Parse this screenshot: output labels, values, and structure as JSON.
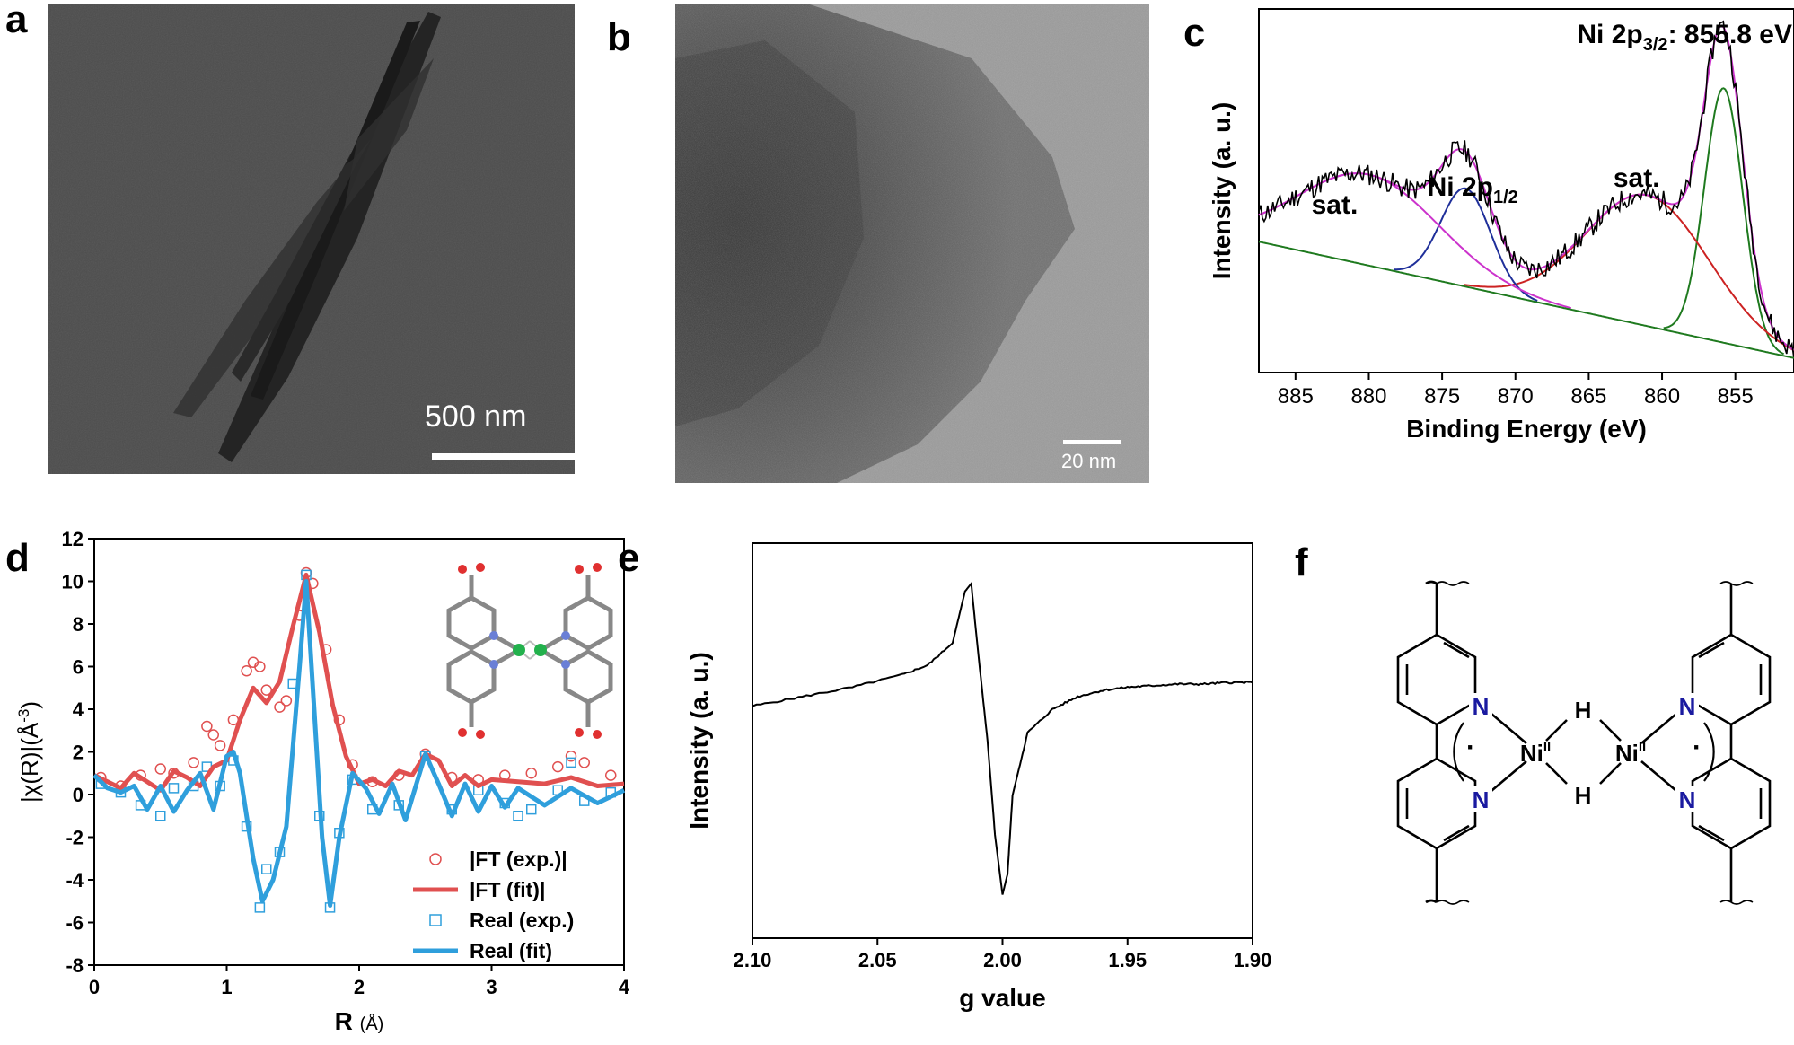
{
  "panels": {
    "a": {
      "letter": "a",
      "scale_label": "500 nm"
    },
    "b": {
      "letter": "b",
      "scale_label": "20 nm"
    },
    "c": {
      "letter": "c"
    },
    "d": {
      "letter": "d"
    },
    "e": {
      "letter": "e"
    },
    "f": {
      "letter": "f"
    }
  },
  "chart_data": [
    {
      "id": "c",
      "type": "line",
      "xlabel": "Binding Energy (eV)",
      "ylabel": "Intensity (a. u.)",
      "xlim": [
        887.5,
        851
      ],
      "x_ticks": [
        885,
        880,
        875,
        870,
        865,
        860,
        855
      ],
      "x_reversed": true,
      "annotations": [
        {
          "text": "Ni 2p",
          "sub": "3/2",
          "suffix": ": 855.8 eV"
        },
        {
          "text": "Ni 2p",
          "sub": "1/2",
          "suffix": ""
        },
        {
          "text": "sat.",
          "sub": "",
          "suffix": ""
        },
        {
          "text": "sat.",
          "sub": "",
          "suffix": ""
        }
      ],
      "background_line": {
        "x": [
          887.5,
          851
        ],
        "y": [
          0.36,
          0.04
        ]
      },
      "peaks": [
        {
          "center": 855.8,
          "height": 0.7,
          "width": 1.3,
          "color": "#1f7a1f"
        },
        {
          "center": 861.0,
          "height": 0.36,
          "width": 4.2,
          "color": "#cc2222"
        },
        {
          "center": 873.4,
          "height": 0.27,
          "width": 1.7,
          "color": "#1f2f9a"
        },
        {
          "center": 880.0,
          "height": 0.25,
          "width": 4.8,
          "color": "#cc33cc"
        }
      ],
      "colors": {
        "data": "#000000",
        "envelope": "#cc33cc",
        "background": "#1f7a1f"
      }
    },
    {
      "id": "d",
      "type": "line",
      "xlabel": "R",
      "xlabel_unit": "(Å)",
      "ylabel": "|χ(R)|(Å",
      "ylabel_sup": "-3",
      "ylabel_end": ")",
      "xlim": [
        0,
        4
      ],
      "ylim": [
        -8,
        12
      ],
      "x_ticks": [
        0,
        1,
        2,
        3,
        4
      ],
      "y_ticks": [
        -8,
        -6,
        -4,
        -2,
        0,
        2,
        4,
        6,
        8,
        10,
        12
      ],
      "legend": [
        "|FT (exp.)|",
        "|FT (fit)|",
        "Real (exp.)",
        "Real (fit)"
      ],
      "legend_position": "bottom-right",
      "series": [
        {
          "name": "|FT (fit)|",
          "color": "#e05050",
          "x": [
            0,
            0.1,
            0.2,
            0.3,
            0.4,
            0.5,
            0.6,
            0.7,
            0.8,
            0.9,
            1.0,
            1.1,
            1.2,
            1.3,
            1.4,
            1.5,
            1.6,
            1.7,
            1.8,
            1.9,
            2.0,
            2.1,
            2.2,
            2.3,
            2.4,
            2.5,
            2.6,
            2.7,
            2.8,
            2.9,
            3.0,
            3.2,
            3.4,
            3.6,
            3.8,
            4.0
          ],
          "y": [
            0.9,
            0.6,
            0.3,
            1.0,
            0.6,
            0.2,
            1.1,
            0.8,
            0.4,
            1.3,
            1.6,
            3.5,
            5.0,
            4.3,
            5.3,
            7.9,
            10.3,
            7.6,
            4.2,
            1.8,
            0.5,
            0.7,
            0.4,
            1.1,
            0.9,
            1.9,
            1.6,
            0.4,
            0.9,
            0.4,
            0.7,
            0.6,
            0.5,
            0.8,
            0.4,
            0.5
          ]
        },
        {
          "name": "Real (fit)",
          "color": "#2f9fdc",
          "x": [
            0,
            0.1,
            0.2,
            0.3,
            0.4,
            0.5,
            0.6,
            0.7,
            0.8,
            0.9,
            1.0,
            1.05,
            1.1,
            1.2,
            1.27,
            1.35,
            1.45,
            1.55,
            1.6,
            1.65,
            1.72,
            1.78,
            1.85,
            1.95,
            2.05,
            2.15,
            2.25,
            2.35,
            2.5,
            2.6,
            2.7,
            2.8,
            2.9,
            3.0,
            3.1,
            3.2,
            3.4,
            3.6,
            3.8,
            4.0
          ],
          "y": [
            0.9,
            0.3,
            0.1,
            0.4,
            -0.7,
            0.4,
            -0.8,
            0.2,
            1.0,
            -0.7,
            1.8,
            2.0,
            1.0,
            -3.0,
            -5.0,
            -4.0,
            -1.5,
            6.0,
            10.0,
            5.0,
            -2.0,
            -5.2,
            -2.0,
            1.0,
            0.3,
            -0.9,
            0.5,
            -1.2,
            1.9,
            0.5,
            -1.0,
            0.5,
            -0.8,
            0.4,
            -0.6,
            0.3,
            -0.5,
            0.3,
            -0.4,
            0.2
          ]
        },
        {
          "name": "|FT (exp.)|",
          "color": "#e05050",
          "x": [
            0.05,
            0.2,
            0.35,
            0.5,
            0.6,
            0.75,
            0.85,
            0.9,
            0.95,
            1.05,
            1.15,
            1.2,
            1.25,
            1.3,
            1.4,
            1.45,
            1.55,
            1.6,
            1.65,
            1.75,
            1.85,
            1.95,
            2.1,
            2.3,
            2.5,
            2.7,
            2.9,
            3.1,
            3.3,
            3.5,
            3.6,
            3.7,
            3.9
          ],
          "y": [
            0.8,
            0.4,
            0.9,
            1.2,
            1.0,
            1.5,
            3.2,
            2.8,
            2.3,
            3.5,
            5.8,
            6.2,
            6.0,
            4.9,
            4.1,
            4.4,
            8.4,
            10.4,
            9.9,
            6.8,
            3.5,
            1.4,
            0.6,
            0.9,
            1.9,
            0.8,
            0.7,
            0.9,
            1.0,
            1.3,
            1.8,
            1.5,
            0.9
          ]
        },
        {
          "name": "Real (exp.)",
          "color": "#2f9fdc",
          "x": [
            0.05,
            0.2,
            0.35,
            0.5,
            0.6,
            0.75,
            0.85,
            0.95,
            1.05,
            1.15,
            1.25,
            1.3,
            1.4,
            1.5,
            1.6,
            1.7,
            1.78,
            1.85,
            1.95,
            2.1,
            2.3,
            2.5,
            2.7,
            2.9,
            3.1,
            3.2,
            3.3,
            3.5,
            3.6,
            3.7,
            3.9
          ],
          "y": [
            0.5,
            0.1,
            -0.5,
            -1.0,
            0.3,
            0.4,
            1.3,
            0.4,
            1.6,
            -1.5,
            -5.3,
            -3.5,
            -2.7,
            5.2,
            10.3,
            -1.0,
            -5.3,
            -1.8,
            0.7,
            -0.7,
            -0.5,
            1.8,
            -0.7,
            0.2,
            -0.4,
            -1.0,
            -0.7,
            0.2,
            1.5,
            -0.3,
            0.1
          ]
        }
      ]
    },
    {
      "id": "e",
      "type": "line",
      "xlabel": "g value",
      "ylabel": "Intensity (a. u.)",
      "xlim": [
        2.1,
        1.9
      ],
      "x_ticks": [
        "2.10",
        "2.05",
        "2.00",
        "1.95",
        "1.90"
      ],
      "x_reversed": true,
      "series": [
        {
          "name": "",
          "color": "#000000",
          "x": [
            2.1,
            2.08,
            2.06,
            2.04,
            2.03,
            2.02,
            2.015,
            2.0125,
            2.01,
            2.006,
            2.003,
            2.0,
            1.998,
            1.996,
            1.99,
            1.98,
            1.97,
            1.96,
            1.95,
            1.94,
            1.93,
            1.92,
            1.91,
            1.9
          ],
          "y": [
            0.22,
            0.28,
            0.34,
            0.42,
            0.48,
            0.62,
            0.95,
            1.0,
            0.6,
            0.0,
            -0.6,
            -0.98,
            -0.85,
            -0.35,
            0.05,
            0.2,
            0.28,
            0.32,
            0.34,
            0.35,
            0.36,
            0.36,
            0.37,
            0.37
          ]
        }
      ]
    }
  ],
  "structure_f": {
    "atoms": {
      "n": "N",
      "h": "H",
      "ni": "Ni",
      "ni_sup": "II",
      "radical": "·"
    }
  }
}
